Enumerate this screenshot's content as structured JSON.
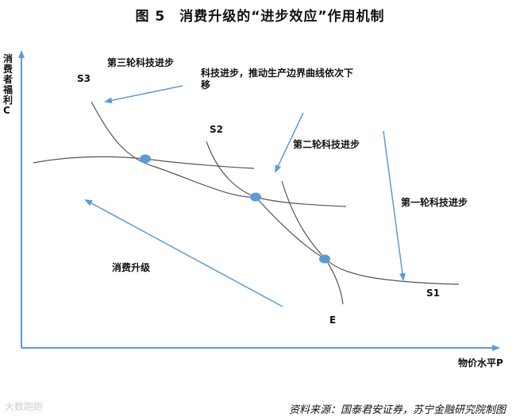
{
  "title": "图 5　消费升级的“进步效应”作用机制",
  "y_axis_label": "消费者福利C",
  "x_axis_label": "物价水平P",
  "curves": {
    "s1": "S1",
    "s2": "S2",
    "s3": "S3",
    "e": "E"
  },
  "annotations": {
    "tech_progress": "科技进步，推动生产边界曲线依次下移",
    "round1": "第一轮科技进步",
    "round2": "第二轮科技进步",
    "round3": "第三轮科技进步",
    "consumption_upgrade": "消费升级"
  },
  "source": "资料来源：国泰君安证券，苏宁金融研究院制图",
  "watermark": "大数跑跑",
  "colors": {
    "arrow": "#5b9bd5",
    "curve": "#555555",
    "point": "#5b9bd5",
    "axis": "#5b9bd5"
  }
}
